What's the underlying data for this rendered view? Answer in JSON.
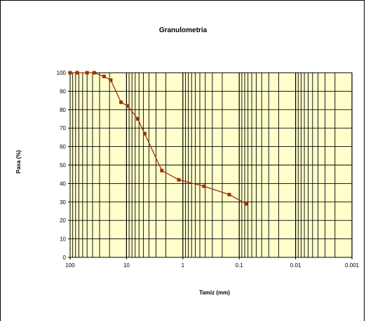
{
  "chart_data": {
    "type": "line",
    "title": "Granulometria",
    "xlabel": "Tamiz (mm)",
    "ylabel": "Pasa (%)",
    "x_scale": "log",
    "x_reversed": true,
    "xlim": [
      100,
      0.001
    ],
    "ylim": [
      0,
      100
    ],
    "x_tick_labels": [
      "100",
      "10",
      "1",
      "0.1",
      "0.01",
      "0.001"
    ],
    "x_tick_values": [
      100,
      10,
      1,
      0.1,
      0.01,
      0.001
    ],
    "y_tick_labels": [
      "0",
      "10",
      "20",
      "30",
      "40",
      "50",
      "60",
      "70",
      "80",
      "90",
      "100"
    ],
    "y_tick_values": [
      0,
      10,
      20,
      30,
      40,
      50,
      60,
      70,
      80,
      90,
      100
    ],
    "grid": true,
    "plot_background": "#ffffcc",
    "series_color": "#993300",
    "series": [
      {
        "x": [
          100,
          75,
          50,
          37.5,
          25,
          19,
          12.5,
          9.5,
          6.3,
          4.75,
          2.36,
          1.18,
          0.42,
          0.15,
          0.075
        ],
        "y": [
          100,
          100,
          100,
          100,
          98,
          96,
          84,
          82,
          75,
          67,
          47,
          42,
          38.5,
          34,
          29
        ]
      }
    ]
  }
}
